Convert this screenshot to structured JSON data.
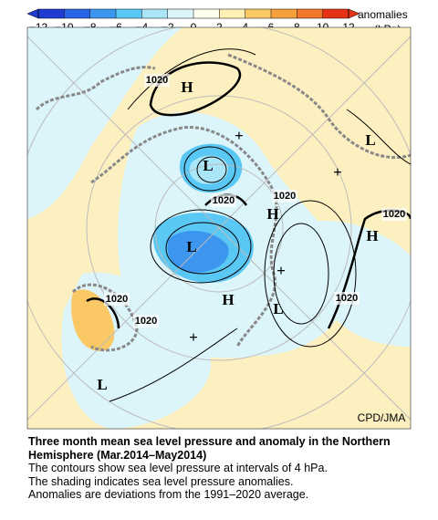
{
  "colorbar": {
    "ticks": [
      {
        "value": -12,
        "label": "−12"
      },
      {
        "value": -10,
        "label": "−10"
      },
      {
        "value": -8,
        "label": "−8"
      },
      {
        "value": -6,
        "label": "−6"
      },
      {
        "value": -4,
        "label": "−4"
      },
      {
        "value": -2,
        "label": "−2"
      },
      0,
      2,
      4,
      6,
      8,
      10,
      12
    ],
    "colors": [
      "#1e3cd2",
      "#2864e6",
      "#3c96f0",
      "#5ac8f5",
      "#aae6f8",
      "#dcf5fa",
      "#fffff0",
      "#fff0b4",
      "#fac864",
      "#f5a03c",
      "#f07828",
      "#e63214"
    ],
    "unit_label": "anomalies",
    "unit": "(hPa)"
  },
  "map": {
    "labels": [
      "1020",
      "H",
      "+",
      "L",
      "+",
      "L",
      "1020",
      "1020",
      "H",
      "1020",
      "H",
      "L",
      "+",
      "H",
      "L",
      "1020",
      "1020",
      "1020",
      "+",
      "L"
    ],
    "credit": "CPD/JMA"
  },
  "caption": {
    "title": "Three month mean sea level pressure and anomaly in the Northern Hemisphere (Mar.2014–May2014)",
    "lines": [
      "The contours show sea level pressure at intervals of 4 hPa.",
      "The shading indicates sea level pressure anomalies.",
      "Anomalies are deviations from the 1991–2020 average."
    ]
  }
}
